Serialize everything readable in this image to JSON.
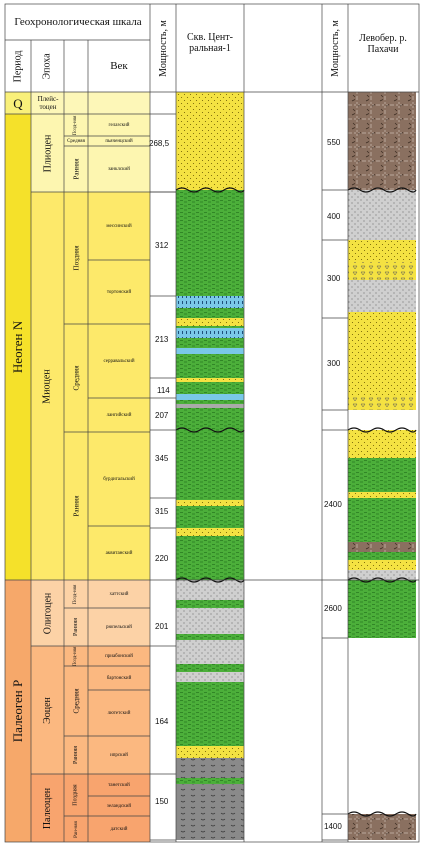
{
  "header": {
    "geo_scale": "Геохронологическая шкала",
    "period": "Период",
    "epoch": "Эпоха",
    "age": "Век",
    "thickness": "Мощность, м",
    "well": "Скв. Цент-ральная-1",
    "thickness2": "Мощность, м",
    "right_section": "Левобер. р. Пахачи"
  },
  "periods": [
    {
      "label": "Q"
    },
    {
      "label": "Неоген N"
    },
    {
      "label": "Палеоген P"
    }
  ],
  "epochs": [
    {
      "label": "Плейс-тоцен"
    },
    {
      "label": "Плиоцен"
    },
    {
      "label": "Миоцен"
    },
    {
      "label": "Олигоцен"
    },
    {
      "label": "Эоцен"
    },
    {
      "label": "Палеоцен"
    }
  ],
  "subepochs": [
    {
      "label": "Позд-няя"
    },
    {
      "label": "Средняя"
    },
    {
      "label": "Ранняя"
    },
    {
      "label": "Поздняя"
    },
    {
      "label": "Средняя"
    },
    {
      "label": "Ранняя"
    },
    {
      "label": "Позд-няя"
    },
    {
      "label": "Ранняя"
    },
    {
      "label": "Позд-няя"
    },
    {
      "label": "Средняя"
    },
    {
      "label": "Ранняя"
    },
    {
      "label": "Поздняя"
    },
    {
      "label": "Ран-няя"
    }
  ],
  "ages": [
    {
      "label": "гелазский"
    },
    {
      "label": "пьяченцский"
    },
    {
      "label": "занклский"
    },
    {
      "label": "мессинский"
    },
    {
      "label": "тортонский"
    },
    {
      "label": "серравальский"
    },
    {
      "label": "лангийский"
    },
    {
      "label": "бурдигальский"
    },
    {
      "label": "аквитанский"
    },
    {
      "label": "хаттский"
    },
    {
      "label": "рюпельский"
    },
    {
      "label": "приабонский"
    },
    {
      "label": "бартонский"
    },
    {
      "label": "лютетский"
    },
    {
      "label": "ипрский"
    },
    {
      "label": "танетский"
    },
    {
      "label": "зеландский"
    },
    {
      "label": "датский"
    }
  ],
  "well_thickness": [
    {
      "value": "268,5"
    },
    {
      "value": "312"
    },
    {
      "value": "213"
    },
    {
      "value": "114"
    },
    {
      "value": "207"
    },
    {
      "value": "345"
    },
    {
      "value": "315"
    },
    {
      "value": "220"
    },
    {
      "value": "201"
    },
    {
      "value": "164"
    },
    {
      "value": "150"
    }
  ],
  "right_thickness": [
    {
      "value": "550"
    },
    {
      "value": "400"
    },
    {
      "value": "300"
    },
    {
      "value": "300"
    },
    {
      "value": "2400"
    },
    {
      "value": "2600"
    },
    {
      "value": "1400"
    }
  ],
  "colors": {
    "quaternary": "#f9f07a",
    "neogene": "#f5e12a",
    "paleogene": "#f6a86a",
    "pliocene": "#fdf6b0",
    "miocene": "#fde96a",
    "oligocene": "#fcd2a6",
    "eocene": "#fbb880",
    "paleocene": "#f8a46e",
    "sand_yellow": "#f4e242",
    "green_silt": "#4caf3a",
    "gray_sand": "#c8c8c8",
    "blue_limestone": "#7ac8e8",
    "brown_volcanic": "#8a7060",
    "dark_gray": "#8a8a8a"
  }
}
